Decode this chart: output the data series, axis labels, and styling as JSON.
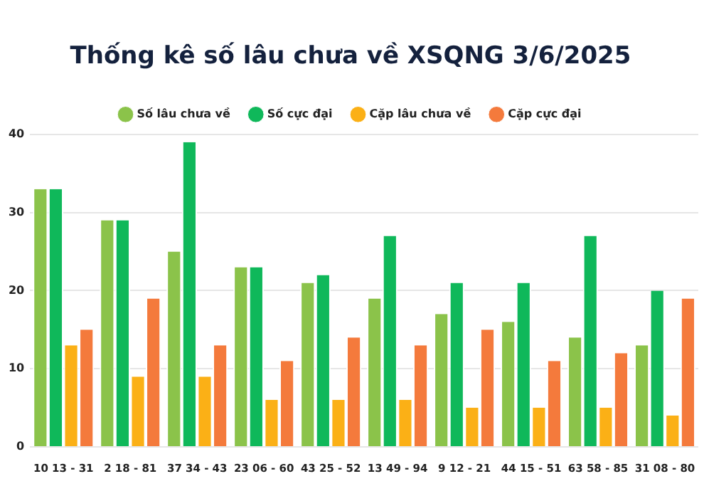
{
  "chart_data": {
    "type": "bar",
    "title": "Thống kê số lâu chưa về XSQNG 3/6/2025",
    "categories": [
      "10 13 - 31",
      "2 18 - 81",
      "37 34 - 43",
      "23 06 - 60",
      "43 25 - 52",
      "13 49 - 94",
      "9 12 - 21",
      "44 15 - 51",
      "63 58 - 85",
      "31 08 - 80"
    ],
    "series": [
      {
        "name": "Số lâu chưa về",
        "color": "#8bc34a",
        "values": [
          33,
          29,
          25,
          23,
          21,
          19,
          17,
          16,
          14,
          13
        ]
      },
      {
        "name": "Số cực đại",
        "color": "#0fb85a",
        "values": [
          33,
          29,
          39,
          23,
          22,
          27,
          21,
          21,
          27,
          20
        ]
      },
      {
        "name": "Cặp lâu chưa về",
        "color": "#fbb016",
        "values": [
          13,
          9,
          9,
          6,
          6,
          6,
          5,
          5,
          5,
          4
        ]
      },
      {
        "name": "Cặp cực đại",
        "color": "#f47a3c",
        "values": [
          15,
          19,
          13,
          11,
          14,
          13,
          15,
          11,
          12,
          19
        ]
      }
    ],
    "ylim": [
      0,
      40
    ],
    "yticks": [
      0,
      10,
      20,
      30,
      40
    ],
    "grid": "y",
    "legend": "top"
  }
}
